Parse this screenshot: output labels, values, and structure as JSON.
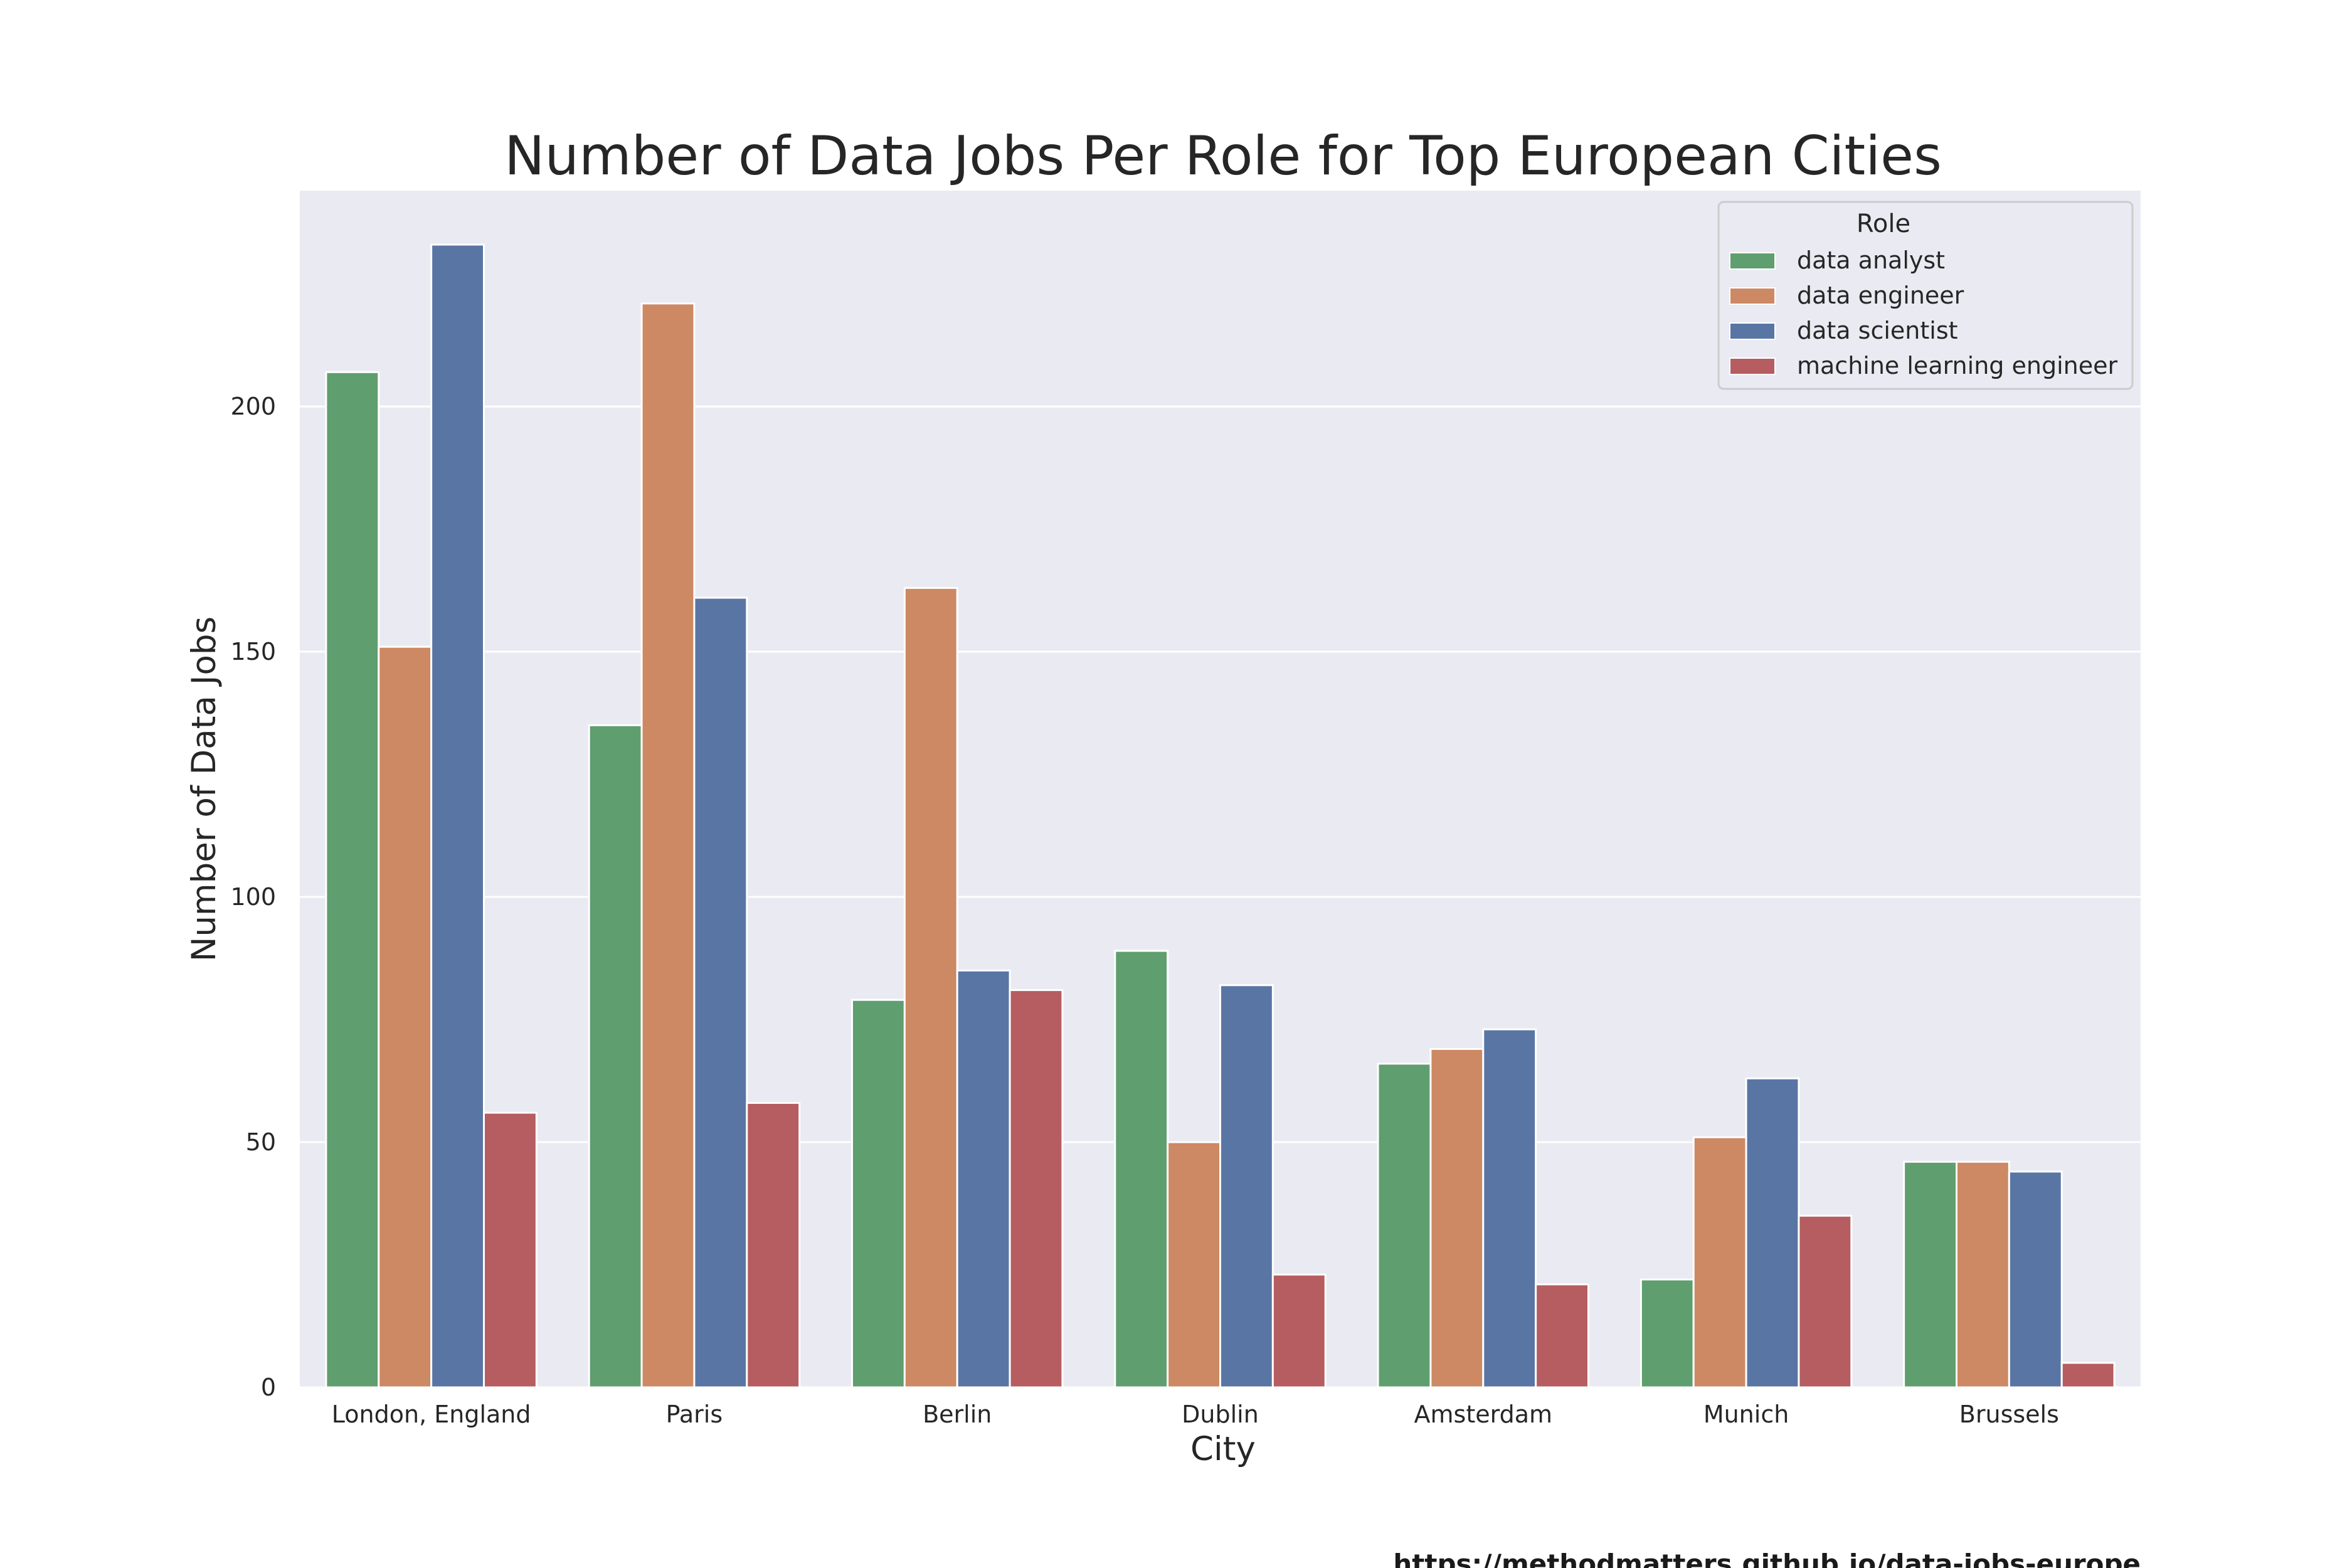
{
  "chart_data": {
    "type": "bar",
    "title": "Number of Data Jobs Per Role for Top European Cities",
    "xlabel": "City",
    "ylabel": "Number of Data Jobs",
    "ylim": [
      0,
      244
    ],
    "yticks": [
      0,
      50,
      100,
      150,
      200
    ],
    "grid": true,
    "legend_title": "Role",
    "legend_position": "top-right",
    "categories": [
      "London, England",
      "Paris",
      "Berlin",
      "Dublin",
      "Amsterdam",
      "Munich",
      "Brussels"
    ],
    "series": [
      {
        "name": "data analyst",
        "color": "#5f9e6e",
        "values": [
          207,
          135,
          79,
          89,
          66,
          22,
          46
        ]
      },
      {
        "name": "data engineer",
        "color": "#cc8963",
        "values": [
          151,
          221,
          163,
          50,
          69,
          51,
          46
        ]
      },
      {
        "name": "data scientist",
        "color": "#5975a4",
        "values": [
          233,
          161,
          85,
          82,
          73,
          63,
          44
        ]
      },
      {
        "name": "machine learning engineer",
        "color": "#b55d60",
        "values": [
          56,
          58,
          81,
          23,
          21,
          35,
          5
        ]
      }
    ],
    "background_color": "#eaeaf2",
    "grid_color": "#ffffff"
  },
  "footer": {
    "source_url": "https://methodmatters.github.io/data-jobs-europe"
  }
}
